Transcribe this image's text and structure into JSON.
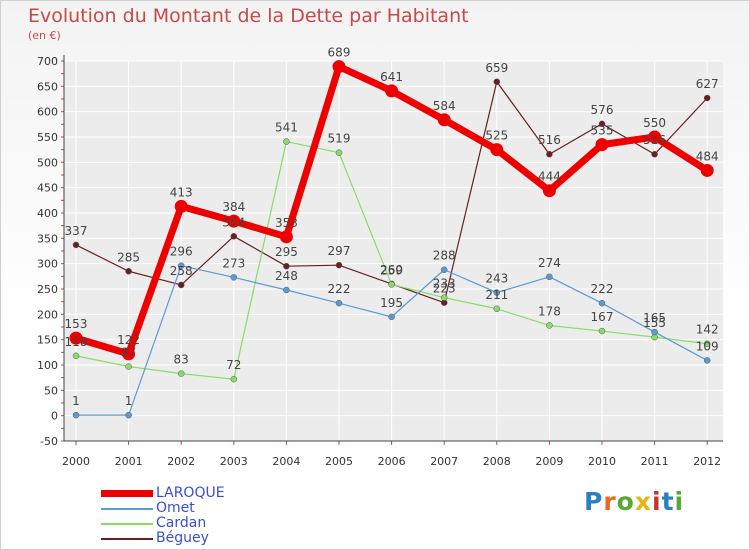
{
  "title": "Evolution du Montant de la Dette par Habitant",
  "subtitle": "(en €)",
  "logo": {
    "text": "Proxiti",
    "colors": [
      "#2a7fc1",
      "#e86a1f",
      "#5aa832",
      "#e2b714",
      "#c03a2b",
      "#2a7fc1",
      "#5aa832"
    ]
  },
  "chart_data": {
    "type": "line",
    "title": "Evolution du Montant de la Dette par Habitant",
    "ylabel": "(en €)",
    "x": [
      "2000",
      "2001",
      "2002",
      "2003",
      "2004",
      "2005",
      "2006",
      "2007",
      "2008",
      "2009",
      "2010",
      "2011",
      "2012"
    ],
    "ylim": [
      -50,
      700
    ],
    "yticks": [
      -50,
      0,
      50,
      100,
      150,
      200,
      250,
      300,
      350,
      400,
      450,
      500,
      550,
      600,
      650,
      700
    ],
    "grid": true,
    "legend_position": "bottom-left",
    "series": [
      {
        "name": "LAROQUE",
        "color": "#ee0000",
        "values": [
          153,
          122,
          413,
          384,
          353,
          689,
          641,
          584,
          525,
          444,
          535,
          550,
          484
        ]
      },
      {
        "name": "Omet",
        "color": "#5a9bd4",
        "values": [
          1,
          1,
          296,
          273,
          248,
          222,
          195,
          288,
          243,
          274,
          222,
          165,
          109
        ]
      },
      {
        "name": "Cardan",
        "color": "#88dd66",
        "values": [
          118,
          97,
          83,
          72,
          541,
          519,
          259,
          233,
          211,
          178,
          167,
          155,
          142
        ]
      },
      {
        "name": "Béguey",
        "color": "#6a1f24",
        "values": [
          337,
          285,
          258,
          354,
          295,
          297,
          260,
          223,
          659,
          516,
          576,
          516,
          627
        ]
      }
    ]
  }
}
